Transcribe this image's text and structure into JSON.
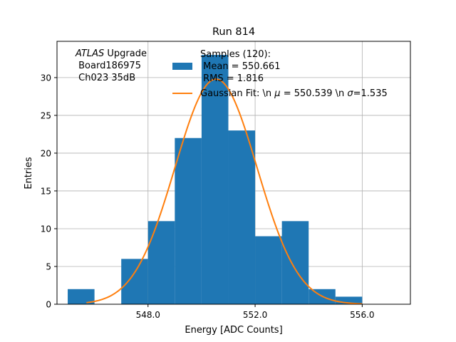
{
  "chart_data": {
    "type": "bar",
    "title": "Run 814",
    "xlabel": "Energy [ADC Counts]",
    "ylabel": "Entries",
    "xlim": [
      544.6,
      557.8
    ],
    "ylim": [
      0,
      34.8
    ],
    "grid": true,
    "bin_width": 1.0,
    "bins": [
      {
        "left": 545.0,
        "count": 2
      },
      {
        "left": 546.0,
        "count": 0
      },
      {
        "left": 547.0,
        "count": 6
      },
      {
        "left": 548.0,
        "count": 11
      },
      {
        "left": 549.0,
        "count": 22
      },
      {
        "left": 550.0,
        "count": 33
      },
      {
        "left": 551.0,
        "count": 23
      },
      {
        "left": 552.0,
        "count": 9
      },
      {
        "left": 553.0,
        "count": 11
      },
      {
        "left": 554.0,
        "count": 2
      },
      {
        "left": 555.0,
        "count": 1
      },
      {
        "left": 556.0,
        "count": 0
      }
    ],
    "x_ticks": [
      548.0,
      552.0,
      556.0
    ],
    "x_tick_labels": [
      "548.0",
      "552.0",
      "556.0"
    ],
    "y_ticks": [
      0,
      5,
      10,
      15,
      20,
      25,
      30
    ],
    "y_tick_labels": [
      "0",
      "5",
      "10",
      "15",
      "20",
      "25",
      "30"
    ],
    "fit": {
      "type": "gaussian",
      "mu": 550.539,
      "sigma": 1.535,
      "amplitude": 29.8,
      "x_range": [
        545.7,
        556.0
      ]
    },
    "series": [
      {
        "name": "Samples (120):\n Mean = 550.661\n RMS = 1.816",
        "type": "histogram",
        "color": "#1f77b4"
      },
      {
        "name": "Gaussian Fit: \\n μ = 550.539 \\n σ=1.535",
        "type": "line",
        "color": "#ff7f0e"
      }
    ],
    "legend_position": "top-right",
    "legend_entries": {
      "samples_lines": [
        "Samples (120):",
        " Mean = 550.661",
        " RMS = 1.816"
      ],
      "fit_prefix": "Gaussian Fit: \\n ",
      "fit_mu_symbol": "μ",
      "fit_mu_text": " = 550.539 \\n ",
      "fit_sigma_symbol": "σ",
      "fit_sigma_text": "=1.535"
    },
    "annotation": {
      "atlas": "ATLAS",
      "upgrade": " Upgrade",
      "line2": " Board186975",
      "line3": " Ch023 35dB"
    }
  }
}
